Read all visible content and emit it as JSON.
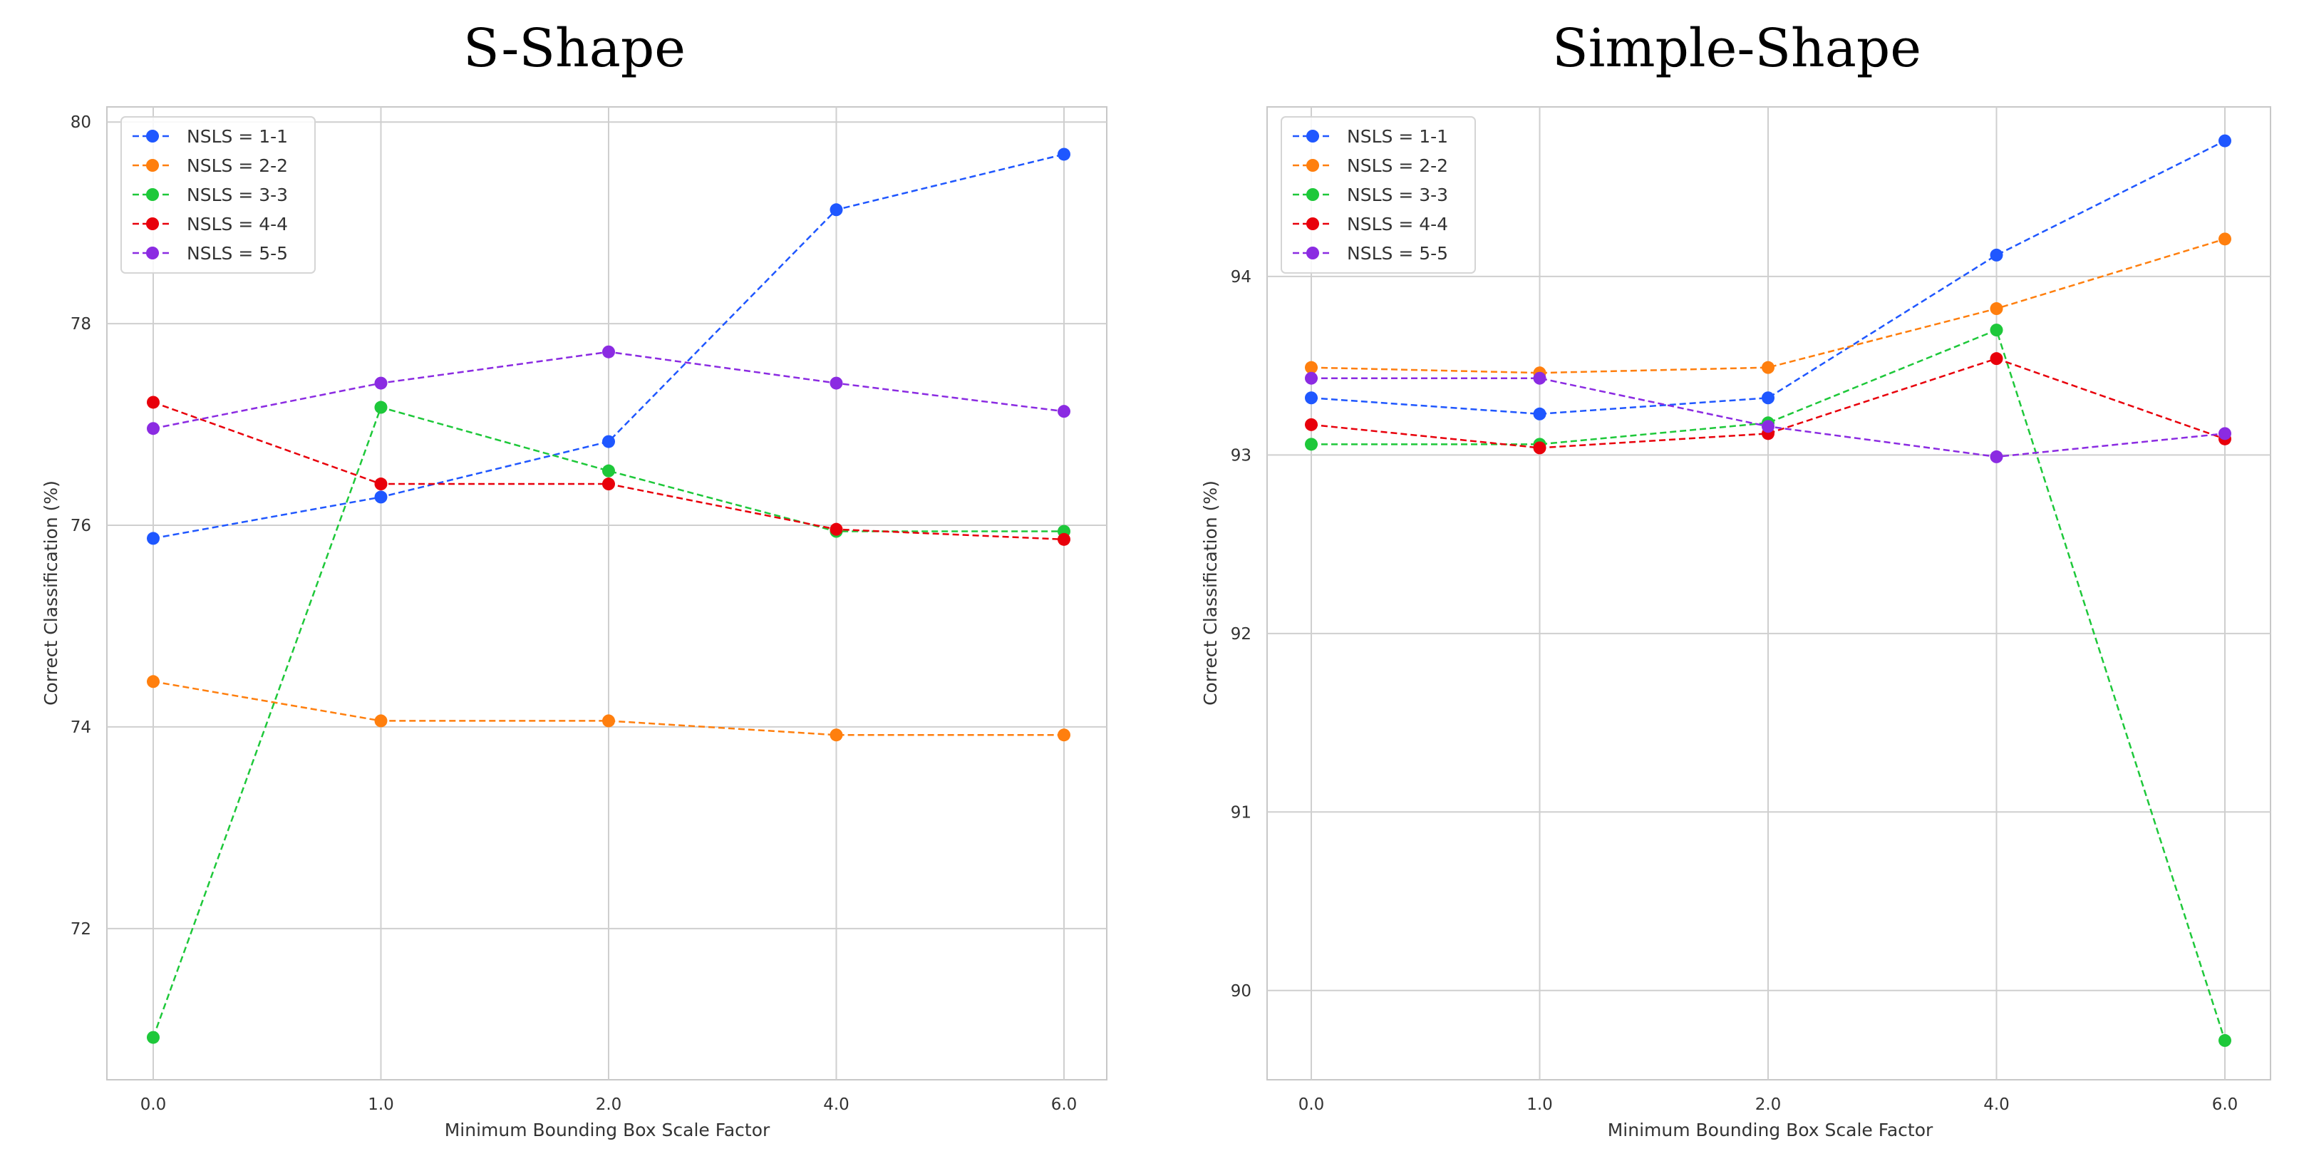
{
  "chart_data": [
    {
      "type": "line",
      "title": "S-Shape",
      "xlabel": "Minimum Bounding Box Scale Factor",
      "ylabel": "Correct Classification (%)",
      "categories": [
        "0.0",
        "1.0",
        "2.0",
        "4.0",
        "6.0"
      ],
      "yticks": [
        "72",
        "74",
        "76",
        "78",
        "80"
      ],
      "ylim": [
        70.5,
        80.15
      ],
      "grid": true,
      "legend": "top-left",
      "series": [
        {
          "name": "NSLS = 1-1",
          "color": "#1f57ff",
          "values": [
            75.87,
            76.28,
            76.83,
            79.13,
            79.68
          ]
        },
        {
          "name": "NSLS = 2-2",
          "color": "#ff7f0e",
          "values": [
            74.45,
            74.06,
            74.06,
            73.92,
            73.92
          ]
        },
        {
          "name": "NSLS = 3-3",
          "color": "#1ec83a",
          "values": [
            70.92,
            77.17,
            76.54,
            75.94,
            75.94
          ]
        },
        {
          "name": "NSLS = 4-4",
          "color": "#e8000b",
          "values": [
            77.22,
            76.41,
            76.41,
            75.96,
            75.86
          ]
        },
        {
          "name": "NSLS = 5-5",
          "color": "#8b2be2",
          "values": [
            76.96,
            77.41,
            77.72,
            77.41,
            77.13
          ]
        }
      ]
    },
    {
      "type": "line",
      "title": "Simple-Shape",
      "xlabel": "Minimum Bounding Box Scale Factor",
      "ylabel": "Correct Classification (%)",
      "categories": [
        "0.0",
        "1.0",
        "2.0",
        "4.0",
        "6.0"
      ],
      "yticks": [
        "90",
        "91",
        "92",
        "93",
        "94"
      ],
      "ylim": [
        89.5,
        94.95
      ],
      "grid": true,
      "legend": "top-left",
      "series": [
        {
          "name": "NSLS = 1-1",
          "color": "#1f57ff",
          "values": [
            93.32,
            93.23,
            93.32,
            94.12,
            94.76
          ]
        },
        {
          "name": "NSLS = 2-2",
          "color": "#ff7f0e",
          "values": [
            93.49,
            93.46,
            93.49,
            93.82,
            94.21
          ]
        },
        {
          "name": "NSLS = 3-3",
          "color": "#1ec83a",
          "values": [
            93.06,
            93.06,
            93.18,
            93.7,
            89.72
          ]
        },
        {
          "name": "NSLS = 4-4",
          "color": "#e8000b",
          "values": [
            93.17,
            93.04,
            93.12,
            93.54,
            93.09
          ]
        },
        {
          "name": "NSLS = 5-5",
          "color": "#8b2be2",
          "values": [
            93.43,
            93.43,
            93.16,
            92.99,
            93.12
          ]
        }
      ]
    }
  ]
}
